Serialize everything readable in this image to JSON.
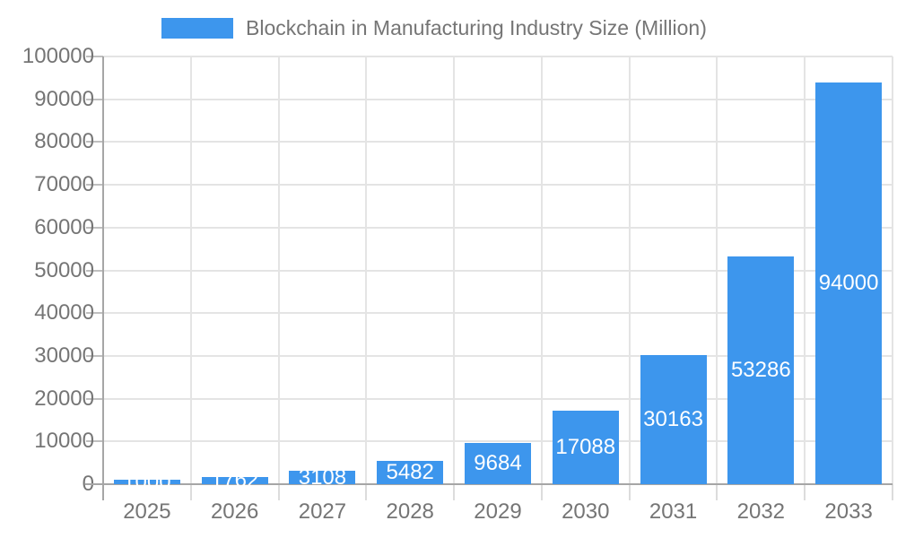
{
  "legend": {
    "label": "Blockchain in Manufacturing Industry Size (Million)"
  },
  "chart_data": {
    "type": "bar",
    "title": "Blockchain in Manufacturing Industry Size (Million)",
    "categories": [
      "2025",
      "2026",
      "2027",
      "2028",
      "2029",
      "2030",
      "2031",
      "2032",
      "2033"
    ],
    "values": [
      1000,
      1762,
      3108,
      5482,
      9684,
      17088,
      30163,
      53286,
      94000
    ],
    "value_labels": [
      "1000",
      "1762",
      "3108",
      "5482",
      "9684",
      "17088",
      "30163",
      "53286",
      "94000"
    ],
    "xlabel": "",
    "ylabel": "",
    "ylim": [
      0,
      100000
    ],
    "ytick_step": 10000,
    "ytick_labels": [
      "0",
      "10000",
      "20000",
      "30000",
      "40000",
      "50000",
      "60000",
      "70000",
      "80000",
      "90000",
      "100000"
    ],
    "grid": true,
    "legend_position": "top",
    "bar_label_position": "center-inside",
    "colors": {
      "bar": "#3d96ed",
      "bar_label": "#ffffff",
      "axis_text": "#757575",
      "grid_line": "#e4e4e4",
      "axis_line": "#a6a6a6",
      "tick": "#bfbfbf",
      "background": "#ffffff"
    }
  }
}
